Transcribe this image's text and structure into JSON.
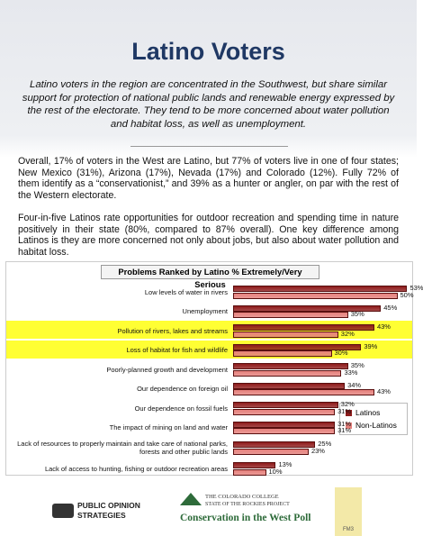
{
  "title": "Latino Voters",
  "intro": "Latino voters in the region are concentrated in the Southwest, but share similar support for protection of national public lands and renewable energy expressed by the rest of the electorate. They tend to be more concerned about water pollution and habitat loss, as well as unemployment.",
  "paragraphs": [
    "Overall, 17% of voters in the West are Latino, but 77% of voters live in one of four states; New Mexico (31%), Arizona (17%), Nevada (17%) and Colorado (12%). Fully 72% of them identify as a “conservationist,” and 39% as a hunter or angler, on par with the rest of the Western electorate.",
    "Four-in-five Latinos rate opportunities for outdoor recreation and spending time in nature positively in their state (80%, compared to 87% overall). One key difference among Latinos is they are more concerned not only about jobs, but also about water pollution and habitat loss."
  ],
  "chart_data": {
    "type": "bar",
    "orientation": "horizontal",
    "title": "Problems Ranked by Latino % Extremely/Very Serious",
    "categories": [
      "Low levels of water in rivers",
      "Unemployment",
      "Pollution of rivers, lakes and streams",
      "Loss of habitat for fish and wildlife",
      "Poorly-planned growth and development",
      "Our dependence on foreign oil",
      "Our dependence on fossil fuels",
      "The impact of mining on land and water",
      "Lack of resources to properly maintain and take care of national parks, forests and other public lands",
      "Lack of access to hunting, fishing or outdoor recreation areas"
    ],
    "highlighted": [
      2,
      3
    ],
    "series": [
      {
        "name": "Latinos",
        "color": "#8e1b1b",
        "values": [
          53,
          45,
          43,
          39,
          35,
          34,
          32,
          31,
          25,
          13
        ],
        "value_labels": [
          "53%",
          "45%",
          "43%",
          "39%",
          "35%",
          "34%",
          "32%",
          "31%",
          "25%",
          "13%"
        ]
      },
      {
        "name": "Non-Latinos",
        "color": "#e5807c",
        "values": [
          50,
          35,
          32,
          30,
          33,
          43,
          31,
          31,
          23,
          10
        ],
        "value_labels": [
          "50%",
          "35%",
          "32%",
          "30%",
          "33%",
          "43%",
          "31%",
          "31%",
          "23%",
          "10%"
        ]
      }
    ],
    "legend": "right"
  },
  "footer": {
    "logos": [
      "PUBLIC OPINION",
      "STRATEGIES",
      "THE COLORADO COLLEGE",
      "STATE OF THE ROCKIES PROJECT",
      "Conservation in the West Poll",
      "FM3"
    ]
  }
}
